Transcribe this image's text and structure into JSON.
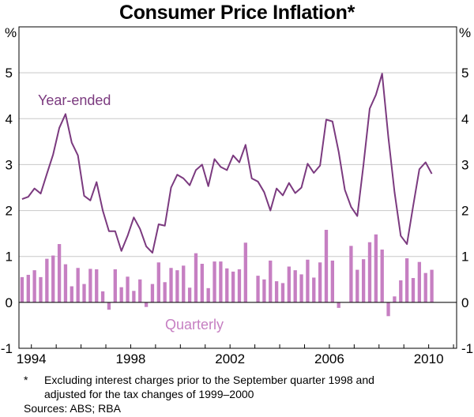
{
  "chart_data": {
    "type": "bar+line",
    "title": "Consumer Price Inflation*",
    "y_unit_left": "%",
    "y_unit_right": "%",
    "ylim": [
      -1,
      6
    ],
    "yticks": [
      -1,
      0,
      1,
      2,
      3,
      4,
      5
    ],
    "xlim": [
      1993.5,
      2011.125
    ],
    "xticks": [
      1994,
      1998,
      2002,
      2006,
      2010
    ],
    "grid": "horizontal",
    "series": [
      {
        "name": "Year-ended",
        "kind": "line",
        "color": "#7b3a7f",
        "x_start": 1993.625,
        "step": 0.25,
        "values": [
          2.25,
          2.3,
          2.48,
          2.37,
          2.8,
          3.22,
          3.8,
          4.1,
          3.48,
          3.2,
          2.32,
          2.22,
          2.62,
          2.0,
          1.55,
          1.55,
          1.12,
          1.45,
          1.85,
          1.6,
          1.22,
          1.08,
          1.7,
          1.67,
          2.5,
          2.78,
          2.7,
          2.55,
          2.88,
          3.0,
          2.53,
          3.12,
          2.95,
          2.88,
          3.2,
          3.05,
          3.43,
          2.7,
          2.63,
          2.4,
          2.0,
          2.48,
          2.33,
          2.6,
          2.38,
          2.5,
          3.02,
          2.82,
          2.98,
          3.98,
          3.94,
          3.28,
          2.45,
          2.08,
          1.88,
          3.0,
          4.22,
          4.52,
          4.98,
          3.6,
          2.4,
          1.45,
          1.27,
          2.1,
          2.9,
          3.05,
          2.8
        ]
      },
      {
        "name": "Quarterly",
        "kind": "bar",
        "color": "#c67fc2",
        "x_start": 1993.625,
        "step": 0.25,
        "values": [
          0.55,
          0.6,
          0.7,
          0.55,
          0.95,
          1.02,
          1.27,
          0.83,
          0.35,
          0.75,
          0.4,
          0.73,
          0.72,
          0.24,
          -0.16,
          0.72,
          0.33,
          0.56,
          0.25,
          0.5,
          -0.1,
          0.4,
          0.87,
          0.44,
          0.75,
          0.7,
          0.8,
          0.32,
          1.07,
          0.84,
          0.31,
          0.89,
          0.89,
          0.74,
          0.67,
          0.72,
          1.3,
          0.0,
          0.58,
          0.5,
          0.91,
          0.46,
          0.42,
          0.78,
          0.7,
          0.61,
          0.93,
          0.54,
          0.87,
          1.58,
          0.91,
          -0.12,
          0.0,
          1.23,
          0.71,
          0.94,
          1.31,
          1.48,
          1.15,
          -0.3,
          0.13,
          0.48,
          0.96,
          0.53,
          0.88,
          0.64,
          0.71
        ]
      }
    ],
    "labels": {
      "line_label": "Year-ended",
      "bar_label": "Quarterly"
    },
    "footnote": {
      "marker": "*",
      "line1": "Excluding interest charges prior to the September quarter 1998 and",
      "line2": "adjusted for the tax changes of 1999–2000",
      "sources": "Sources: ABS; RBA"
    }
  }
}
